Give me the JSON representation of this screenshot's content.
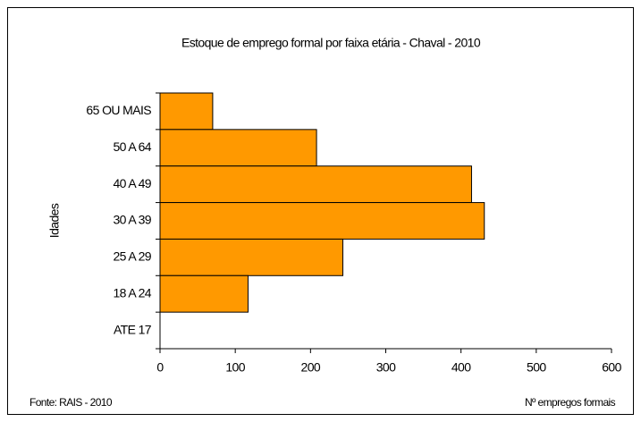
{
  "chart_data": {
    "type": "hbar",
    "title": "Estoque de emprego formal por faixa etária - Chaval - 2010",
    "categories": [
      "65 OU MAIS",
      "50 A 64",
      "40 A 49",
      "30 A 39",
      "25 A 29",
      "18 A 24",
      "ATE 17"
    ],
    "values": [
      70,
      208,
      414,
      431,
      243,
      117,
      0
    ],
    "color": "#ff9900",
    "xlim": [
      0,
      600
    ],
    "xticks": [
      0,
      100,
      200,
      300,
      400,
      500,
      600
    ],
    "ylabel": "Idades",
    "xlabel": "Nº empregos formais",
    "source": "Fonte: RAIS - 2010",
    "grid": false
  }
}
